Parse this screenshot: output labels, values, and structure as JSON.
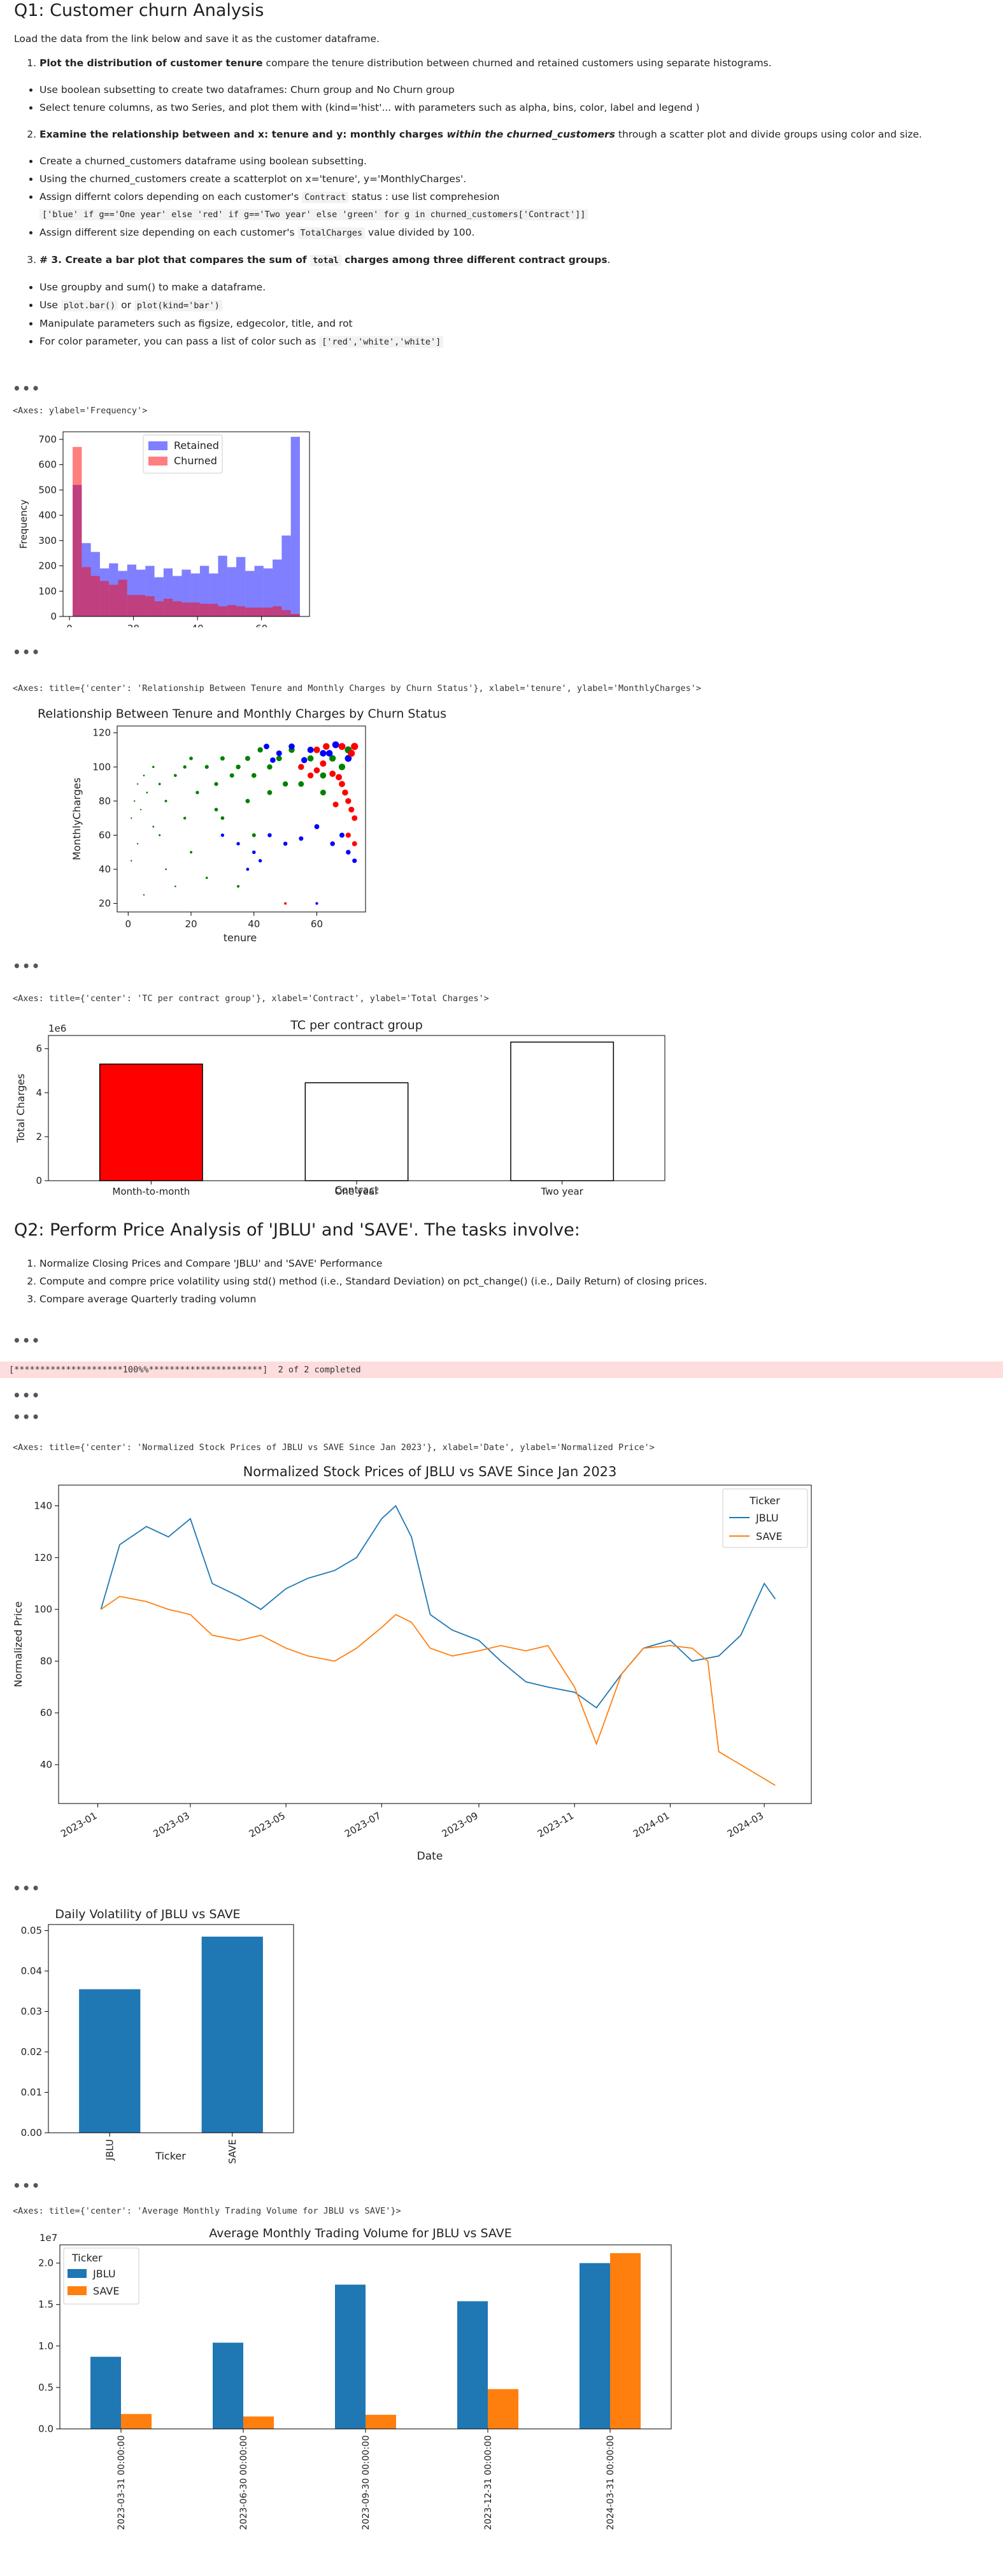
{
  "q1": {
    "title": "Q1: Customer churn Analysis",
    "intro": "Load the data from the link below and save it as the customer dataframe.",
    "task1_bold": "Plot the distribution of customer tenure",
    "task1_rest": " compare the tenure distribution between churned and retained customers using separate histograms.",
    "task1_bullets": [
      "Use boolean subsetting to create two dataframes: Churn group and No Churn group",
      "Select tenure columns, as two Series, and plot them with (kind='hist'... with parameters such as alpha, bins, color, label and legend )"
    ],
    "task2_bold": "Examine the relationship between and x: tenure and y: monthly charges ",
    "task2_bolditalic": "within the churned_customers",
    "task2_rest": " through a scatter plot and divide groups using color and size.",
    "task2_bullets": [
      "Create a churned_customers dataframe using boolean subsetting.",
      "Using the churned_customers create a scatterplot on x='tenure', y='MonthlyCharges'."
    ],
    "task2_b3_pre": "Assign differnt colors depending on each customer's ",
    "task2_b3_code": "Contract",
    "task2_b3_post": " status : use list comprehesion",
    "task2_b3_code2": "['blue' if g=='One year' else 'red' if g=='Two year' else 'green' for g in churned_customers['Contract']]",
    "task2_b4_pre": "Assign different size depending on each customer's ",
    "task2_b4_code": "TotalCharges",
    "task2_b4_post": " value divided by 100.",
    "task3_bold_pre": "# 3. Create a bar plot that compares the sum of ",
    "task3_code": "total",
    "task3_bold_post": " charges among three different contract groups",
    "task3_rest": ".",
    "task3_b1": "Use groupby and sum() to make a dataframe.",
    "task3_b2_pre": "Use ",
    "task3_b2_code1": "plot.bar()",
    "task3_b2_mid": " or ",
    "task3_b2_code2": "plot(kind='bar')",
    "task3_b3": "Manipulate parameters such as figsize, edgecolor, title, and rot",
    "task3_b4_pre": "For color parameter, you can pass a list of color such as ",
    "task3_b4_code": "['red','white','white']"
  },
  "ellipsis": "•••",
  "outputs": {
    "hist_repr": "<Axes: ylabel='Frequency'>",
    "scatter_repr": "<Axes: title={'center': 'Relationship Between Tenure and Monthly Charges by Churn Status'}, xlabel='tenure', ylabel='MonthlyCharges'>",
    "tc_repr": "<Axes: title={'center': 'TC per contract group'}, xlabel='Contract', ylabel='Total Charges'>",
    "download": "[*********************100%%**********************]  2 of 2 completed",
    "norm_repr": "<Axes: title={'center': 'Normalized Stock Prices of JBLU vs SAVE Since Jan 2023'}, xlabel='Date', ylabel='Normalized Price'>",
    "vol_repr_monthly": "<Axes: title={'center': 'Average Monthly Trading Volume for JBLU vs SAVE'}>"
  },
  "q2": {
    "title": "Q2: Perform Price Analysis of 'JBLU' and 'SAVE'. The tasks involve:",
    "items": [
      "Normalize Closing Prices and Compare 'JBLU' and 'SAVE' Performance",
      "Compute and compre price volatility using std() method (i.e., Standard Deviation) on pct_change() (i.e., Daily Return) of closing prices.",
      "Compare average Quarterly trading volumn"
    ]
  },
  "charts": {
    "hist": {
      "legend": [
        "Retained",
        "Churned"
      ],
      "ylabel": "Frequency",
      "xticks": [
        "0",
        "20",
        "40",
        "60"
      ],
      "yticks": [
        "0",
        "100",
        "200",
        "300",
        "400",
        "500",
        "600",
        "700"
      ],
      "colors": {
        "retained": "#0000ff",
        "churned": "#ff0000"
      }
    },
    "scatter": {
      "title": "Relationship Between Tenure and Monthly Charges by Churn Status",
      "xlabel": "tenure",
      "ylabel": "MonthlyCharges",
      "xticks": [
        "0",
        "20",
        "40",
        "60"
      ],
      "yticks": [
        "20",
        "40",
        "60",
        "80",
        "100",
        "120"
      ]
    },
    "tc": {
      "title": "TC per contract group",
      "xlabel": "Contract",
      "ylabel": "Total Charges",
      "offset": "1e6",
      "yticks": [
        "0",
        "2",
        "4",
        "6"
      ]
    },
    "norm": {
      "title": "Normalized Stock Prices of JBLU vs SAVE Since Jan 2023",
      "xlabel": "Date",
      "ylabel": "Normalized Price",
      "legend_title": "Ticker",
      "series_names": [
        "JBLU",
        "SAVE"
      ],
      "xticks": [
        "2023-01",
        "2023-03",
        "2023-05",
        "2023-07",
        "2023-09",
        "2023-11",
        "2024-01",
        "2024-03"
      ],
      "yticks": [
        "40",
        "60",
        "80",
        "100",
        "120",
        "140"
      ],
      "colors": {
        "JBLU": "#1f77b4",
        "SAVE": "#ff7f0e"
      }
    },
    "dvol": {
      "title": "Daily Volatility of JBLU vs SAVE",
      "xlabel": "Ticker",
      "yticks": [
        "0.00",
        "0.01",
        "0.02",
        "0.03",
        "0.04",
        "0.05"
      ]
    },
    "mvol": {
      "title": "Average Monthly Trading Volume for JBLU vs SAVE",
      "offset": "1e7",
      "legend_title": "Ticker",
      "yticks": [
        "0.0",
        "0.5",
        "1.0",
        "1.5",
        "2.0"
      ]
    }
  },
  "chart_data": [
    {
      "type": "bar",
      "subtype": "histogram",
      "ylabel": "Frequency",
      "xlim": [
        -2,
        75
      ],
      "ylim": [
        0,
        730
      ],
      "bin_edges": [
        1,
        3.84,
        6.68,
        9.52,
        12.36,
        15.2,
        18.04,
        20.88,
        23.72,
        26.56,
        29.4,
        32.24,
        35.08,
        37.92,
        40.76,
        43.6,
        46.44,
        49.28,
        52.12,
        54.96,
        57.8,
        60.64,
        63.48,
        66.32,
        69.16,
        72
      ],
      "series": [
        {
          "name": "Retained",
          "values": [
            520,
            290,
            255,
            190,
            210,
            180,
            205,
            185,
            200,
            155,
            190,
            160,
            185,
            170,
            200,
            170,
            240,
            195,
            235,
            180,
            200,
            190,
            225,
            320,
            710
          ]
        },
        {
          "name": "Churned",
          "values": [
            670,
            195,
            160,
            140,
            125,
            145,
            85,
            85,
            80,
            60,
            70,
            60,
            55,
            55,
            50,
            50,
            40,
            45,
            40,
            35,
            35,
            35,
            40,
            25,
            10
          ]
        }
      ]
    },
    {
      "type": "scatter",
      "title": "Relationship Between Tenure and Monthly Charges by Churn Status",
      "xlabel": "tenure",
      "ylabel": "MonthlyCharges",
      "xlim": [
        -3.5,
        75.5
      ],
      "ylim": [
        15,
        124
      ],
      "series": [
        {
          "name": "",
          "points": [
            [
              1,
              70
            ],
            [
              2,
              80
            ],
            [
              3,
              90
            ],
            [
              1,
              45
            ],
            [
              4,
              75
            ],
            [
              5,
              95
            ],
            [
              6,
              85
            ],
            [
              8,
              100
            ],
            [
              10,
              90
            ],
            [
              12,
              80
            ],
            [
              15,
              95
            ],
            [
              18,
              100
            ],
            [
              20,
              105
            ],
            [
              22,
              85
            ],
            [
              25,
              100
            ],
            [
              28,
              90
            ],
            [
              30,
              105
            ],
            [
              33,
              95
            ],
            [
              35,
              100
            ],
            [
              38,
              105
            ],
            [
              40,
              95
            ],
            [
              42,
              110
            ],
            [
              45,
              100
            ],
            [
              48,
              105
            ],
            [
              50,
              90
            ],
            [
              52,
              110
            ],
            [
              55,
              100
            ],
            [
              58,
              105
            ],
            [
              60,
              110
            ],
            [
              62,
              95
            ],
            [
              65,
              105
            ],
            [
              68,
              100
            ],
            [
              70,
              110
            ],
            [
              10,
              60
            ],
            [
              20,
              50
            ],
            [
              30,
              70
            ],
            [
              40,
              60
            ],
            [
              5,
              25
            ],
            [
              15,
              30
            ],
            [
              25,
              35
            ],
            [
              35,
              30
            ],
            [
              3,
              55
            ],
            [
              8,
              65
            ],
            [
              12,
              40
            ],
            [
              18,
              70
            ],
            [
              28,
              75
            ],
            [
              38,
              80
            ],
            [
              45,
              85
            ],
            [
              55,
              90
            ],
            [
              62,
              85
            ]
          ]
        },
        {
          "name": "",
          "points": [
            [
              45,
              60
            ],
            [
              50,
              55
            ],
            [
              55,
              58
            ],
            [
              60,
              65
            ],
            [
              65,
              55
            ],
            [
              68,
              60
            ],
            [
              70,
              50
            ],
            [
              72,
              45
            ],
            [
              48,
              108
            ],
            [
              52,
              112
            ],
            [
              58,
              110
            ],
            [
              62,
              108
            ],
            [
              66,
              113
            ],
            [
              70,
              105
            ],
            [
              35,
              55
            ],
            [
              40,
              50
            ],
            [
              42,
              45
            ],
            [
              30,
              60
            ],
            [
              38,
              40
            ],
            [
              60,
              20
            ],
            [
              64,
              108
            ],
            [
              56,
              104
            ],
            [
              44,
              112
            ],
            [
              46,
              104
            ]
          ]
        },
        {
          "name": "",
          "points": [
            [
              55,
              100
            ],
            [
              58,
              95
            ],
            [
              60,
              98
            ],
            [
              62,
              102
            ],
            [
              65,
              96
            ],
            [
              67,
              94
            ],
            [
              68,
              90
            ],
            [
              69,
              85
            ],
            [
              70,
              80
            ],
            [
              71,
              75
            ],
            [
              72,
              70
            ],
            [
              70,
              60
            ],
            [
              72,
              55
            ],
            [
              60,
              110
            ],
            [
              63,
              112
            ],
            [
              68,
              112
            ],
            [
              71,
              108
            ],
            [
              72,
              112
            ],
            [
              50,
              20
            ],
            [
              66,
              78
            ]
          ]
        }
      ]
    },
    {
      "type": "bar",
      "title": "TC per contract group",
      "xlabel": "Contract",
      "ylabel": "Total Charges",
      "categories": [
        "Month-to-month",
        "One year",
        "Two year"
      ],
      "values": [
        5300000,
        4450000,
        6300000
      ],
      "ylim": [
        0,
        6600000
      ]
    },
    {
      "type": "line",
      "title": "Normalized Stock Prices of JBLU vs SAVE Since Jan 2023",
      "xlabel": "Date",
      "ylabel": "Normalized Price",
      "ylim": [
        25,
        148
      ],
      "series": [
        {
          "name": "JBLU",
          "x": [
            "2023-01-03",
            "2023-01-15",
            "2023-02-01",
            "2023-02-15",
            "2023-03-01",
            "2023-03-15",
            "2023-04-01",
            "2023-04-15",
            "2023-05-01",
            "2023-05-15",
            "2023-06-01",
            "2023-06-15",
            "2023-07-01",
            "2023-07-10",
            "2023-07-20",
            "2023-08-01",
            "2023-08-15",
            "2023-09-01",
            "2023-09-15",
            "2023-10-01",
            "2023-10-15",
            "2023-11-01",
            "2023-11-15",
            "2023-12-01",
            "2023-12-15",
            "2024-01-01",
            "2024-01-15",
            "2024-02-01",
            "2024-02-15",
            "2024-03-01",
            "2024-03-08"
          ],
          "values": [
            100,
            125,
            132,
            128,
            135,
            110,
            105,
            100,
            108,
            112,
            115,
            120,
            135,
            140,
            128,
            98,
            92,
            88,
            80,
            72,
            70,
            68,
            62,
            75,
            85,
            88,
            80,
            82,
            90,
            110,
            104
          ]
        },
        {
          "name": "SAVE",
          "x": [
            "2023-01-03",
            "2023-01-15",
            "2023-02-01",
            "2023-02-15",
            "2023-03-01",
            "2023-03-15",
            "2023-04-01",
            "2023-04-15",
            "2023-05-01",
            "2023-05-15",
            "2023-06-01",
            "2023-06-15",
            "2023-07-01",
            "2023-07-10",
            "2023-07-20",
            "2023-08-01",
            "2023-08-15",
            "2023-09-01",
            "2023-09-15",
            "2023-10-01",
            "2023-10-15",
            "2023-11-01",
            "2023-11-15",
            "2023-12-01",
            "2023-12-15",
            "2024-01-01",
            "2024-01-15",
            "2024-01-25",
            "2024-02-01",
            "2024-02-15",
            "2024-03-08"
          ],
          "values": [
            100,
            105,
            103,
            100,
            98,
            90,
            88,
            90,
            85,
            82,
            80,
            85,
            93,
            98,
            95,
            85,
            82,
            84,
            86,
            84,
            86,
            70,
            48,
            75,
            85,
            86,
            85,
            80,
            45,
            40,
            32
          ]
        }
      ]
    },
    {
      "type": "bar",
      "title": "Daily Volatility of JBLU vs SAVE",
      "xlabel": "Ticker",
      "categories": [
        "JBLU",
        "SAVE"
      ],
      "values": [
        0.0355,
        0.0485
      ],
      "ylim": [
        0,
        0.0515
      ]
    },
    {
      "type": "bar",
      "title": "Average Monthly Trading Volume for JBLU vs SAVE",
      "categories": [
        "2023-03-31 00:00:00",
        "2023-06-30 00:00:00",
        "2023-09-30 00:00:00",
        "2023-12-31 00:00:00",
        "2024-03-31 00:00:00"
      ],
      "series": [
        {
          "name": "JBLU",
          "values": [
            8700000,
            10400000,
            17400000,
            15400000,
            20000000
          ]
        },
        {
          "name": "SAVE",
          "values": [
            1800000,
            1500000,
            1700000,
            4800000,
            21200000
          ]
        }
      ],
      "ylim": [
        0,
        22200000
      ]
    }
  ]
}
